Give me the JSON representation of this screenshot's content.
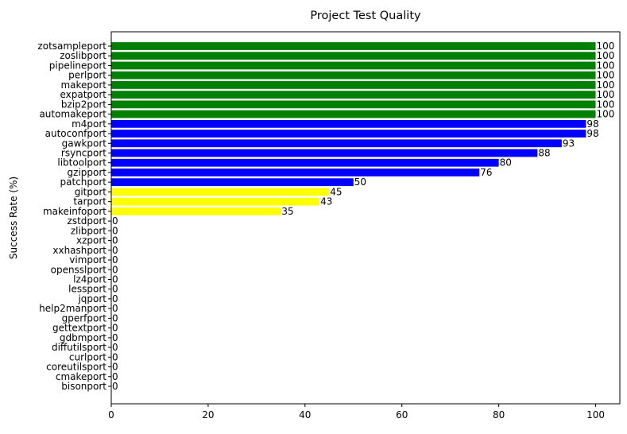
{
  "chart_data": {
    "type": "bar",
    "orientation": "horizontal",
    "title": "Project Test Quality",
    "xlabel": "",
    "ylabel": "Success Rate (%)",
    "xlim": [
      0,
      105
    ],
    "xticks": [
      0,
      20,
      40,
      60,
      80,
      100
    ],
    "grid": false,
    "categories": [
      "zotsampleport",
      "zoslibport",
      "pipelineport",
      "perlport",
      "makeport",
      "expatport",
      "bzip2port",
      "automakeport",
      "m4port",
      "autoconfport",
      "gawkport",
      "rsyncport",
      "libtoolport",
      "gzipport",
      "patchport",
      "gitport",
      "tarport",
      "makeinfoport",
      "zstdport",
      "zlibport",
      "xzport",
      "xxhashport",
      "vimport",
      "opensslport",
      "lz4port",
      "lessport",
      "jqport",
      "help2manport",
      "gperfport",
      "gettextport",
      "gdbmport",
      "diffutilsport",
      "curlport",
      "coreutilsport",
      "cmakeport",
      "bisonport"
    ],
    "values": [
      100,
      100,
      100,
      100,
      100,
      100,
      100,
      100,
      98,
      98,
      93,
      88,
      80,
      76,
      50,
      45,
      43,
      35,
      0,
      0,
      0,
      0,
      0,
      0,
      0,
      0,
      0,
      0,
      0,
      0,
      0,
      0,
      0,
      0,
      0,
      0
    ],
    "colors": {
      "high": "#008000",
      "mid": "#0000ff",
      "low": "#ffff00"
    }
  }
}
